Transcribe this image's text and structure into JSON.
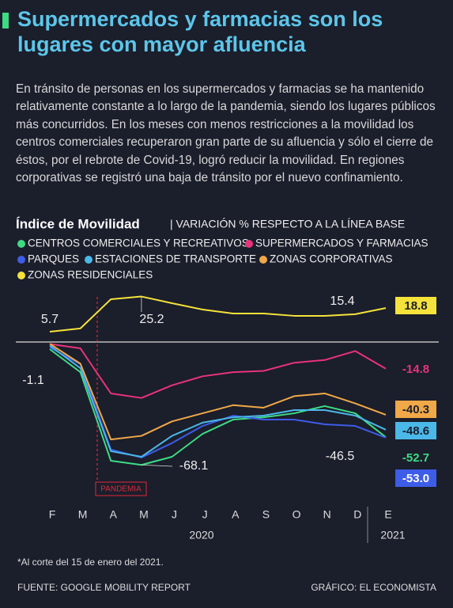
{
  "header": {
    "title": "Supermercados y farmacias son los lugares con mayor afluencia",
    "description": "En tránsito de personas en los supermercados y farmacias se ha mantenido relativamente constante a lo largo de la pandemia, siendo los lugares públicos más concurridos. En los meses con menos restricciones a la movilidad los centros comerciales recuperaron gran parte de su afluencia y sólo el cierre de éstos, por el rebrote de Covid-19, logró reducir la movilidad. En regiones corporativas se registró una baja de tránsito por el nuevo confinamiento."
  },
  "chart_data": {
    "type": "line",
    "title": "Índice de Movilidad",
    "subtitle": "| VARIACIÓN % RESPECTO A LA LÍNEA BASE",
    "categories": [
      "F",
      "M",
      "A",
      "M",
      "J",
      "J",
      "A",
      "S",
      "O",
      "N",
      "D",
      "E"
    ],
    "year_labels": [
      "2020",
      "2021"
    ],
    "ylim": [
      -90,
      40
    ],
    "annotation": "PANDEMIA",
    "series": [
      {
        "name": "CENTROS COMERCIALES Y RECREATIVOS",
        "color": "#3ddc84",
        "values": [
          -4,
          -16.7,
          -65.8,
          -68.1,
          -63.6,
          -50.9,
          -43,
          -41.7,
          -39.5,
          -35.5,
          -39.5,
          -52.7
        ],
        "end_label": "-52.7"
      },
      {
        "name": "SUPERMERCADOS Y FARMACIAS",
        "color": "#e8337a",
        "values": [
          -1.1,
          -3.5,
          -28.5,
          -31,
          -24,
          -19,
          -16.7,
          -16,
          -11.5,
          -10,
          -5,
          -14.8
        ],
        "end_label": "-14.8"
      },
      {
        "name": "PARQUES",
        "color": "#3d5ce8",
        "values": [
          -3,
          -12.3,
          -59.6,
          -64,
          -56,
          -46.5,
          -40.8,
          -43,
          -43,
          -45.6,
          -46.5,
          -53
        ],
        "end_label": "-53.0"
      },
      {
        "name": "ESTACIONES DE TRANSPORTE",
        "color": "#4ab8e8",
        "values": [
          -2,
          -14.5,
          -60.5,
          -63.6,
          -52,
          -44.7,
          -41.7,
          -40.8,
          -37.7,
          -37.7,
          -40.8,
          -48.6
        ],
        "end_label": "-48.6"
      },
      {
        "name": "ZONAS CORPORATIVAS",
        "color": "#f0a848",
        "values": [
          -1,
          -12,
          -54,
          -52,
          -44,
          -39.5,
          -35,
          -36.4,
          -30,
          -28.5,
          -34,
          -40.3
        ],
        "end_label": "-40.3"
      },
      {
        "name": "ZONAS RESIDENCIALES",
        "color": "#f5e23a",
        "values": [
          5.7,
          7.5,
          23.7,
          25.2,
          21.5,
          18,
          15.8,
          15.8,
          14.5,
          14.5,
          15.4,
          18.8
        ],
        "end_label": "18.8"
      }
    ]
  },
  "footer": {
    "note": "*Al corte del 15 de enero del 2021.",
    "source": "FUENTE: GOOGLE MOBILITY REPORT",
    "credit": "GRÁFICO: EL ECONOMISTA"
  }
}
